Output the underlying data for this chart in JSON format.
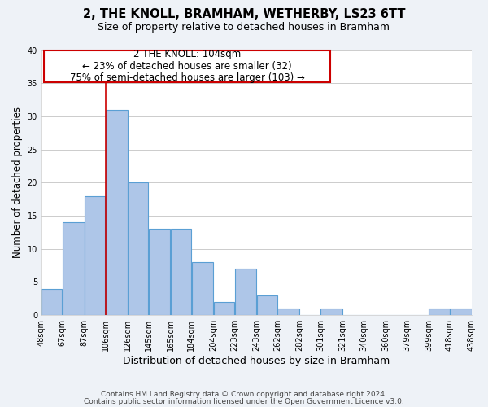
{
  "title": "2, THE KNOLL, BRAMHAM, WETHERBY, LS23 6TT",
  "subtitle": "Size of property relative to detached houses in Bramham",
  "xlabel": "Distribution of detached houses by size in Bramham",
  "ylabel": "Number of detached properties",
  "bar_left_edges": [
    48,
    67,
    87,
    106,
    126,
    145,
    165,
    184,
    204,
    223,
    243,
    262,
    282,
    301,
    321,
    340,
    360,
    379,
    399,
    418
  ],
  "bar_widths": [
    19,
    20,
    19,
    20,
    19,
    20,
    19,
    20,
    19,
    20,
    19,
    20,
    19,
    20,
    19,
    20,
    19,
    20,
    19,
    20
  ],
  "bar_heights": [
    4,
    14,
    18,
    31,
    20,
    13,
    13,
    8,
    2,
    7,
    3,
    1,
    0,
    1,
    0,
    0,
    0,
    0,
    1,
    1
  ],
  "tick_labels": [
    "48sqm",
    "67sqm",
    "87sqm",
    "106sqm",
    "126sqm",
    "145sqm",
    "165sqm",
    "184sqm",
    "204sqm",
    "223sqm",
    "243sqm",
    "262sqm",
    "282sqm",
    "301sqm",
    "321sqm",
    "340sqm",
    "360sqm",
    "379sqm",
    "399sqm",
    "418sqm",
    "438sqm"
  ],
  "bar_color": "#aec6e8",
  "bar_edge_color": "#5a9fd4",
  "ylim": [
    0,
    40
  ],
  "yticks": [
    0,
    5,
    10,
    15,
    20,
    25,
    30,
    35,
    40
  ],
  "xlim_left": 48,
  "xlim_right": 438,
  "property_line_x": 106,
  "property_line_color": "#cc0000",
  "annotation_line1": "2 THE KNOLL: 104sqm",
  "annotation_line2": "← 23% of detached houses are smaller (32)",
  "annotation_line3": "75% of semi-detached houses are larger (103) →",
  "annotation_box_color": "#cc0000",
  "footer_line1": "Contains HM Land Registry data © Crown copyright and database right 2024.",
  "footer_line2": "Contains public sector information licensed under the Open Government Licence v3.0.",
  "background_color": "#eef2f7",
  "plot_background_color": "#ffffff",
  "grid_color": "#cccccc"
}
